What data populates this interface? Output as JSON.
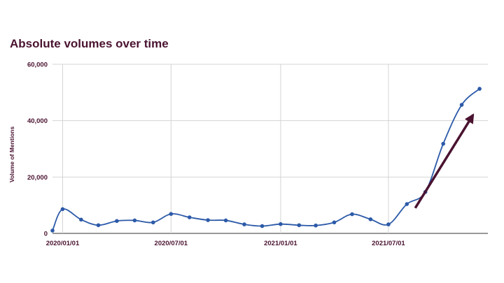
{
  "chart_data": {
    "type": "line",
    "title": "Absolute volumes over time",
    "xlabel": "",
    "ylabel": "Volume of Mentions",
    "ylim": [
      0,
      60000
    ],
    "yticks": [
      0,
      20000,
      40000,
      60000
    ],
    "ytick_labels": [
      "0",
      "20,000",
      "40,000",
      "60,000"
    ],
    "xlim": [
      "2019-12-15",
      "2021-12-15"
    ],
    "xticks": [
      "2020-01-01",
      "2020-07-01",
      "2021-01-01",
      "2021-07-01"
    ],
    "xtick_labels": [
      "2020/01/01",
      "2020/07/01",
      "2021/01/01",
      "2021/07/01"
    ],
    "grid": true,
    "legend": "none",
    "series": [
      {
        "color": "#2c5aa8",
        "smooth": true,
        "x": [
          "2019-12-15",
          "2020-01-01",
          "2020-02-01",
          "2020-03-01",
          "2020-04-01",
          "2020-05-01",
          "2020-06-01",
          "2020-07-01",
          "2020-08-01",
          "2020-09-01",
          "2020-10-01",
          "2020-11-01",
          "2020-12-01",
          "2021-01-01",
          "2021-02-01",
          "2021-03-01",
          "2021-04-01",
          "2021-05-01",
          "2021-06-01",
          "2021-07-01",
          "2021-08-01",
          "2021-09-01",
          "2021-10-01",
          "2021-11-01",
          "2021-12-01"
        ],
        "y": [
          1000,
          8600,
          4900,
          2900,
          4400,
          4600,
          3900,
          6900,
          5700,
          4700,
          4600,
          3200,
          2600,
          3300,
          2900,
          2800,
          3900,
          6800,
          5000,
          3200,
          10400,
          14700,
          31800,
          45600,
          51300
        ]
      }
    ],
    "annotations": [
      {
        "type": "arrow",
        "color": "#4a1330",
        "from": [
          "2021-08-15",
          9000
        ],
        "to": [
          "2021-11-20",
          42000
        ]
      }
    ]
  }
}
